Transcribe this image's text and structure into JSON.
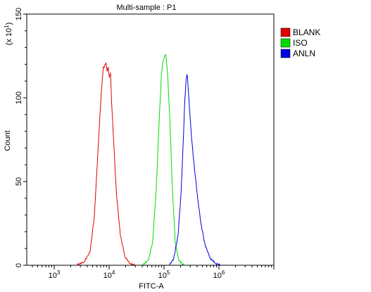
{
  "chart_data": {
    "type": "line",
    "title": "Multi-sample : P1",
    "xlabel": "FITC-A",
    "ylabel": "Count",
    "y_multiplier": "(x 10",
    "y_multiplier_exp": "1",
    "y_multiplier_close": ")",
    "x_scale": "log",
    "xlim": [
      316,
      10000000
    ],
    "ylim": [
      0,
      150
    ],
    "x_ticks": [
      {
        "base": "10",
        "exp": "3",
        "value": 1000
      },
      {
        "base": "10",
        "exp": "4",
        "value": 10000
      },
      {
        "base": "10",
        "exp": "5",
        "value": 100000
      },
      {
        "base": "10",
        "exp": "6",
        "value": 1000000
      }
    ],
    "y_ticks": [
      {
        "label": "0",
        "value": 0
      },
      {
        "label": "50",
        "value": 50
      },
      {
        "label": "100",
        "value": 100
      },
      {
        "label": "150",
        "value": 150
      }
    ],
    "grid": false,
    "legend_position": "right",
    "series": [
      {
        "name": "BLANK",
        "color": "#e00000",
        "points": [
          [
            2500,
            0
          ],
          [
            3500,
            2
          ],
          [
            4500,
            8
          ],
          [
            5400,
            30
          ],
          [
            6300,
            70
          ],
          [
            7100,
            100
          ],
          [
            7800,
            118
          ],
          [
            8300,
            119
          ],
          [
            8700,
            121
          ],
          [
            9200,
            116
          ],
          [
            9700,
            118
          ],
          [
            10100,
            112
          ],
          [
            10600,
            115
          ],
          [
            11000,
            100
          ],
          [
            12000,
            76
          ],
          [
            13500,
            44
          ],
          [
            16000,
            18
          ],
          [
            19500,
            5
          ],
          [
            24000,
            1
          ],
          [
            30000,
            0
          ]
        ]
      },
      {
        "name": "ISO",
        "color": "#00dc00",
        "points": [
          [
            40000,
            0
          ],
          [
            52000,
            3
          ],
          [
            62000,
            14
          ],
          [
            72000,
            45
          ],
          [
            82000,
            88
          ],
          [
            90000,
            115
          ],
          [
            96000,
            122
          ],
          [
            101000,
            124
          ],
          [
            106000,
            126
          ],
          [
            111000,
            122
          ],
          [
            118000,
            110
          ],
          [
            128000,
            85
          ],
          [
            142000,
            46
          ],
          [
            160000,
            14
          ],
          [
            185000,
            3
          ],
          [
            230000,
            0
          ]
        ]
      },
      {
        "name": "ANLN",
        "color": "#0000e0",
        "points": [
          [
            125000,
            0
          ],
          [
            150000,
            4
          ],
          [
            180000,
            18
          ],
          [
            205000,
            44
          ],
          [
            225000,
            76
          ],
          [
            240000,
            100
          ],
          [
            252000,
            110
          ],
          [
            260000,
            114
          ],
          [
            268000,
            112
          ],
          [
            285000,
            98
          ],
          [
            315000,
            77
          ],
          [
            360000,
            57
          ],
          [
            410000,
            40
          ],
          [
            470000,
            25
          ],
          [
            560000,
            12
          ],
          [
            700000,
            4
          ],
          [
            880000,
            1
          ],
          [
            1100000,
            0
          ]
        ]
      }
    ]
  }
}
